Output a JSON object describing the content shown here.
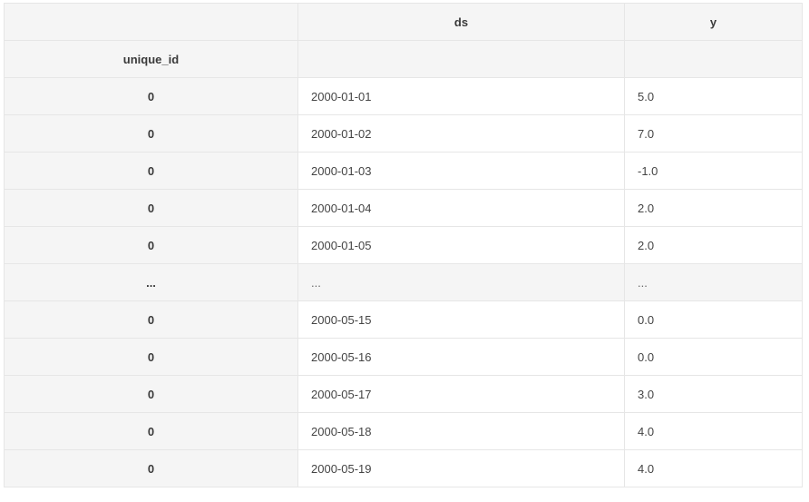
{
  "table": {
    "columns": [
      "ds",
      "y"
    ],
    "index_name": "unique_id",
    "rows": [
      {
        "index": "0",
        "ds": "2000-01-01",
        "y": "5.0"
      },
      {
        "index": "0",
        "ds": "2000-01-02",
        "y": "7.0"
      },
      {
        "index": "0",
        "ds": "2000-01-03",
        "y": "-1.0"
      },
      {
        "index": "0",
        "ds": "2000-01-04",
        "y": "2.0"
      },
      {
        "index": "0",
        "ds": "2000-01-05",
        "y": "2.0"
      },
      {
        "index": "...",
        "ds": "...",
        "y": "..."
      },
      {
        "index": "0",
        "ds": "2000-05-15",
        "y": "0.0"
      },
      {
        "index": "0",
        "ds": "2000-05-16",
        "y": "0.0"
      },
      {
        "index": "0",
        "ds": "2000-05-17",
        "y": "3.0"
      },
      {
        "index": "0",
        "ds": "2000-05-18",
        "y": "4.0"
      },
      {
        "index": "0",
        "ds": "2000-05-19",
        "y": "4.0"
      }
    ]
  }
}
